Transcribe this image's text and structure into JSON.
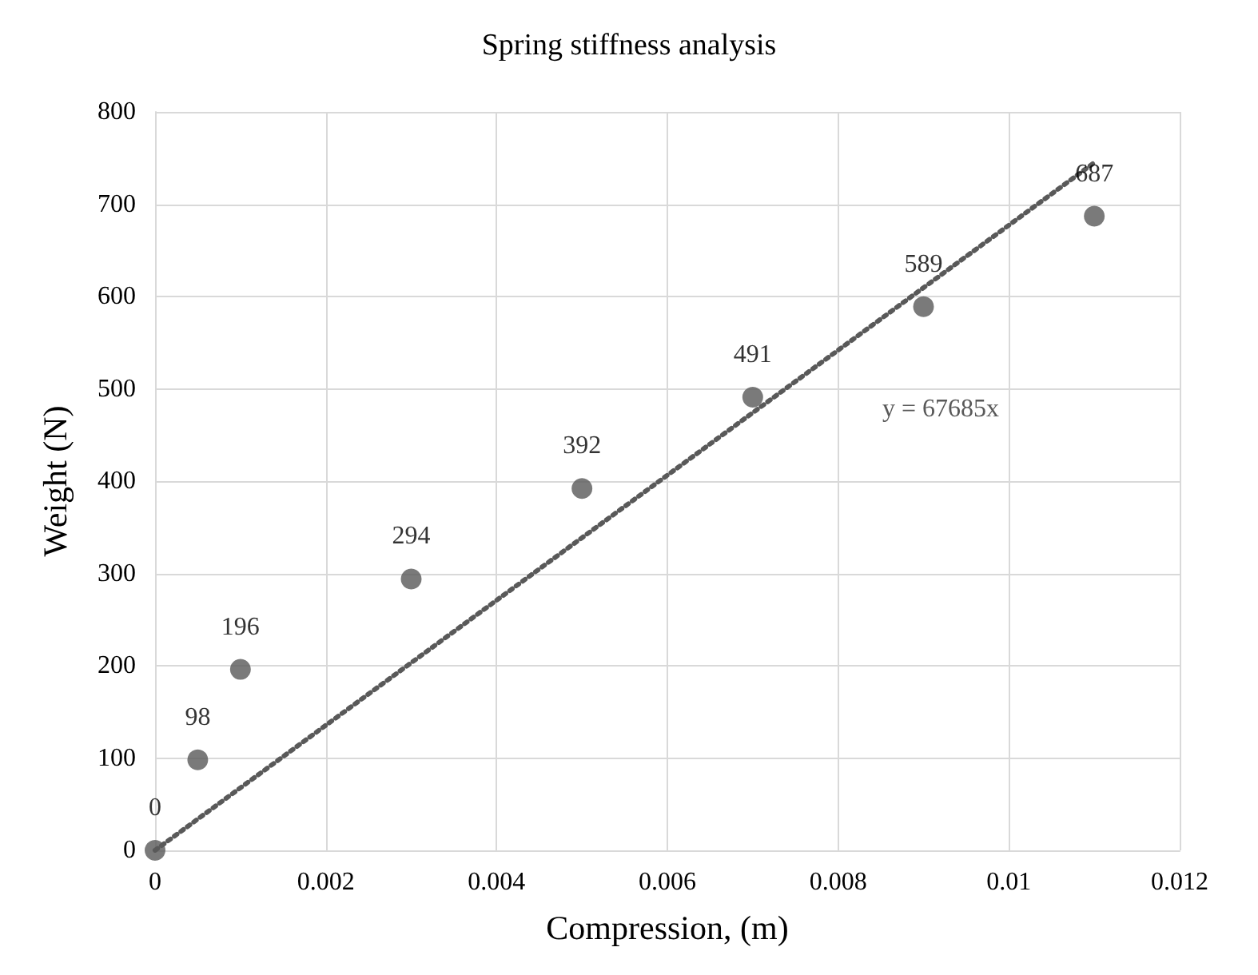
{
  "chart_data": {
    "type": "scatter",
    "title": "Spring stiffness analysis",
    "xlabel": "Compression, (m)",
    "ylabel": "Weight (N)",
    "series": [
      {
        "color": "#595959",
        "x": [
          0,
          0.0005,
          0.001,
          0.003,
          0.005,
          0.007,
          0.009,
          0.011
        ],
        "values": [
          0,
          98,
          196,
          294,
          392,
          491,
          589,
          687
        ],
        "data_labels": true,
        "marker": "circle"
      },
      {
        "type": "line",
        "color": "#595959",
        "x": [
          0,
          0.011
        ],
        "values": [
          0,
          745
        ],
        "line_style": "dotted",
        "marker": "none"
      }
    ],
    "annotations": [
      "y = 67685x"
    ],
    "xlim": [
      0,
      0.012
    ],
    "xticks": [
      0,
      0.002,
      0.004,
      0.006,
      0.008,
      0.01,
      0.012
    ],
    "ylim": [
      0,
      800
    ],
    "yticks": [
      0,
      100,
      200,
      300,
      400,
      500,
      600,
      700,
      800
    ],
    "grid": true
  }
}
